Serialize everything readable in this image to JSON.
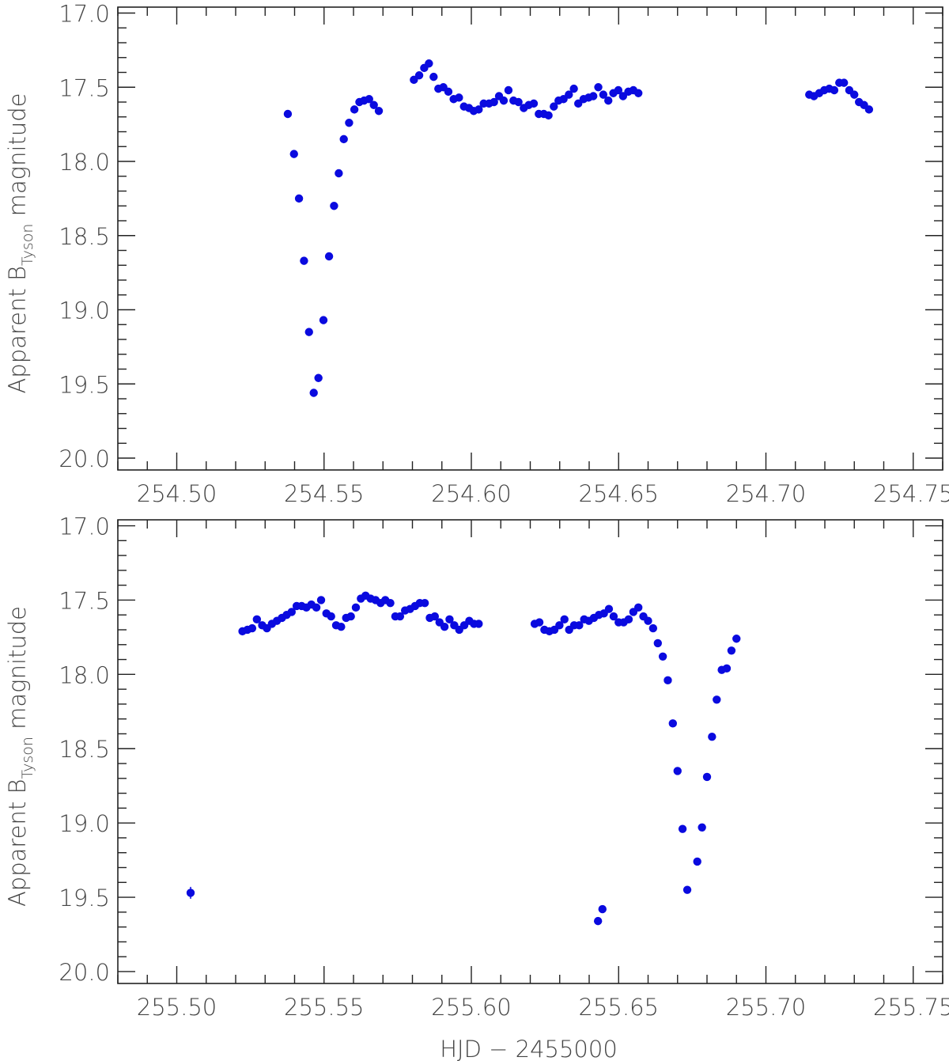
{
  "chart_data": [
    {
      "type": "scatter",
      "ylabel_main": "Apparent B",
      "ylabel_sub": "Tyson",
      "ylabel_tail": " magnitude",
      "xlabel": "",
      "xlim": [
        254.48,
        254.76
      ],
      "ylim": [
        20.08,
        16.96
      ],
      "y_inverted": true,
      "xticks": [
        254.5,
        254.55,
        254.6,
        254.65,
        254.7,
        254.75
      ],
      "xtick_labels": [
        "254.50",
        "254.55",
        "254.60",
        "254.65",
        "254.70",
        "254.75"
      ],
      "yticks": [
        17.0,
        17.5,
        18.0,
        18.5,
        19.0,
        19.5,
        20.0
      ],
      "ytick_labels": [
        "17.0",
        "17.5",
        "18.0",
        "18.5",
        "19.0",
        "19.5",
        "20.0"
      ],
      "color": "#0a0adf",
      "points": [
        [
          254.5377,
          17.68
        ],
        [
          254.5398,
          17.95
        ],
        [
          254.5415,
          18.25
        ],
        [
          254.5432,
          18.67
        ],
        [
          254.5449,
          19.15
        ],
        [
          254.5465,
          19.56
        ],
        [
          254.5481,
          19.46
        ],
        [
          254.5498,
          19.07
        ],
        [
          254.5517,
          18.64
        ],
        [
          254.5534,
          18.3
        ],
        [
          254.555,
          18.08
        ],
        [
          254.5567,
          17.85
        ],
        [
          254.5585,
          17.74
        ],
        [
          254.5603,
          17.65
        ],
        [
          254.562,
          17.6
        ],
        [
          254.5636,
          17.59
        ],
        [
          254.5653,
          17.58
        ],
        [
          254.5669,
          17.62
        ],
        [
          254.5686,
          17.66
        ],
        [
          254.5805,
          17.45
        ],
        [
          254.5823,
          17.42
        ],
        [
          254.584,
          17.37
        ],
        [
          254.5856,
          17.34
        ],
        [
          254.5872,
          17.43
        ],
        [
          254.5888,
          17.51
        ],
        [
          254.5905,
          17.5
        ],
        [
          254.5922,
          17.53
        ],
        [
          254.594,
          17.58
        ],
        [
          254.5958,
          17.57
        ],
        [
          254.5975,
          17.63
        ],
        [
          254.5992,
          17.64
        ],
        [
          254.6008,
          17.66
        ],
        [
          254.6025,
          17.65
        ],
        [
          254.6042,
          17.61
        ],
        [
          254.606,
          17.61
        ],
        [
          254.6077,
          17.6
        ],
        [
          254.6094,
          17.56
        ],
        [
          254.611,
          17.59
        ],
        [
          254.6126,
          17.52
        ],
        [
          254.6143,
          17.59
        ],
        [
          254.616,
          17.6
        ],
        [
          254.6178,
          17.64
        ],
        [
          254.6195,
          17.62
        ],
        [
          254.6212,
          17.61
        ],
        [
          254.6229,
          17.68
        ],
        [
          254.6246,
          17.68
        ],
        [
          254.6262,
          17.69
        ],
        [
          254.628,
          17.63
        ],
        [
          254.6296,
          17.59
        ],
        [
          254.6313,
          17.58
        ],
        [
          254.6331,
          17.55
        ],
        [
          254.6348,
          17.51
        ],
        [
          254.6363,
          17.61
        ],
        [
          254.6381,
          17.58
        ],
        [
          254.6398,
          17.57
        ],
        [
          254.6414,
          17.56
        ],
        [
          254.6431,
          17.5
        ],
        [
          254.6448,
          17.55
        ],
        [
          254.6465,
          17.59
        ],
        [
          254.6482,
          17.54
        ],
        [
          254.6499,
          17.52
        ],
        [
          254.6515,
          17.56
        ],
        [
          254.6533,
          17.53
        ],
        [
          254.655,
          17.52
        ],
        [
          254.6567,
          17.54
        ],
        [
          254.7147,
          17.55
        ],
        [
          254.7163,
          17.56
        ],
        [
          254.7181,
          17.54
        ],
        [
          254.7198,
          17.52
        ],
        [
          254.7215,
          17.51
        ],
        [
          254.7232,
          17.52
        ],
        [
          254.7249,
          17.47
        ],
        [
          254.7265,
          17.47
        ],
        [
          254.7283,
          17.52
        ],
        [
          254.73,
          17.55
        ],
        [
          254.7316,
          17.6
        ],
        [
          254.7333,
          17.62
        ],
        [
          254.735,
          17.65
        ]
      ]
    },
    {
      "type": "scatter",
      "ylabel_main": "Apparent B",
      "ylabel_sub": "Tyson",
      "ylabel_tail": " magnitude",
      "xlabel": "HJD − 2455000",
      "xlim": [
        255.48,
        255.76
      ],
      "ylim": [
        20.08,
        16.96
      ],
      "y_inverted": true,
      "xticks": [
        255.5,
        255.55,
        255.6,
        255.65,
        255.7,
        255.75
      ],
      "xtick_labels": [
        "255.50",
        "255.55",
        "255.60",
        "255.65",
        "255.70",
        "255.75"
      ],
      "yticks": [
        17.0,
        17.5,
        18.0,
        18.5,
        19.0,
        19.5,
        20.0
      ],
      "ytick_labels": [
        "17.0",
        "17.5",
        "18.0",
        "18.5",
        "19.0",
        "19.5",
        "20.0"
      ],
      "color": "#0a0adf",
      "points_with_errors": [
        [
          255.5047,
          19.47,
          0.04
        ],
        [
          255.643,
          19.66,
          0.025
        ],
        [
          255.6445,
          19.58,
          0.025
        ]
      ],
      "points": [
        [
          255.5223,
          17.71
        ],
        [
          255.524,
          17.7
        ],
        [
          255.5256,
          17.69
        ],
        [
          255.5272,
          17.63
        ],
        [
          255.529,
          17.67
        ],
        [
          255.5306,
          17.69
        ],
        [
          255.5323,
          17.66
        ],
        [
          255.534,
          17.64
        ],
        [
          255.5357,
          17.62
        ],
        [
          255.5373,
          17.6
        ],
        [
          255.539,
          17.58
        ],
        [
          255.5407,
          17.54
        ],
        [
          255.5424,
          17.54
        ],
        [
          255.544,
          17.55
        ],
        [
          255.5457,
          17.53
        ],
        [
          255.5474,
          17.55
        ],
        [
          255.549,
          17.5
        ],
        [
          255.5508,
          17.59
        ],
        [
          255.5524,
          17.61
        ],
        [
          255.5541,
          17.67
        ],
        [
          255.5558,
          17.68
        ],
        [
          255.5575,
          17.62
        ],
        [
          255.5591,
          17.61
        ],
        [
          255.5608,
          17.55
        ],
        [
          255.5625,
          17.49
        ],
        [
          255.5641,
          17.47
        ],
        [
          255.5658,
          17.49
        ],
        [
          255.5675,
          17.5
        ],
        [
          255.5692,
          17.52
        ],
        [
          255.5708,
          17.5
        ],
        [
          255.5725,
          17.52
        ],
        [
          255.5742,
          17.61
        ],
        [
          255.5758,
          17.61
        ],
        [
          255.5775,
          17.57
        ],
        [
          255.5792,
          17.56
        ],
        [
          255.5809,
          17.54
        ],
        [
          255.5825,
          17.52
        ],
        [
          255.5842,
          17.52
        ],
        [
          255.5859,
          17.62
        ],
        [
          255.5876,
          17.61
        ],
        [
          255.5892,
          17.65
        ],
        [
          255.5909,
          17.68
        ],
        [
          255.5926,
          17.63
        ],
        [
          255.5942,
          17.67
        ],
        [
          255.5959,
          17.7
        ],
        [
          255.5976,
          17.67
        ],
        [
          255.5993,
          17.64
        ],
        [
          255.6009,
          17.66
        ],
        [
          255.6025,
          17.66
        ],
        [
          255.6215,
          17.66
        ],
        [
          255.6231,
          17.65
        ],
        [
          255.6248,
          17.7
        ],
        [
          255.6265,
          17.71
        ],
        [
          255.6282,
          17.7
        ],
        [
          255.6299,
          17.67
        ],
        [
          255.6316,
          17.63
        ],
        [
          255.6332,
          17.7
        ],
        [
          255.6349,
          17.67
        ],
        [
          255.6366,
          17.67
        ],
        [
          255.6383,
          17.63
        ],
        [
          255.6399,
          17.64
        ],
        [
          255.6416,
          17.62
        ],
        [
          255.6433,
          17.6
        ],
        [
          255.645,
          17.59
        ],
        [
          255.6467,
          17.56
        ],
        [
          255.6483,
          17.61
        ],
        [
          255.65,
          17.65
        ],
        [
          255.6517,
          17.65
        ],
        [
          255.6534,
          17.63
        ],
        [
          255.655,
          17.58
        ],
        [
          255.6567,
          17.55
        ],
        [
          255.6584,
          17.61
        ],
        [
          255.66,
          17.64
        ],
        [
          255.6617,
          17.69
        ],
        [
          255.6633,
          17.79
        ],
        [
          255.665,
          17.88
        ],
        [
          255.6667,
          18.04
        ],
        [
          255.6684,
          18.33
        ],
        [
          255.67,
          18.65
        ],
        [
          255.6717,
          19.04
        ],
        [
          255.6733,
          19.45
        ],
        [
          255.6767,
          19.26
        ],
        [
          255.6783,
          19.03
        ],
        [
          255.68,
          18.69
        ],
        [
          255.6817,
          18.42
        ],
        [
          255.6833,
          18.17
        ],
        [
          255.685,
          17.97
        ],
        [
          255.6867,
          17.96
        ],
        [
          255.6883,
          17.84
        ],
        [
          255.69,
          17.76
        ]
      ]
    }
  ]
}
